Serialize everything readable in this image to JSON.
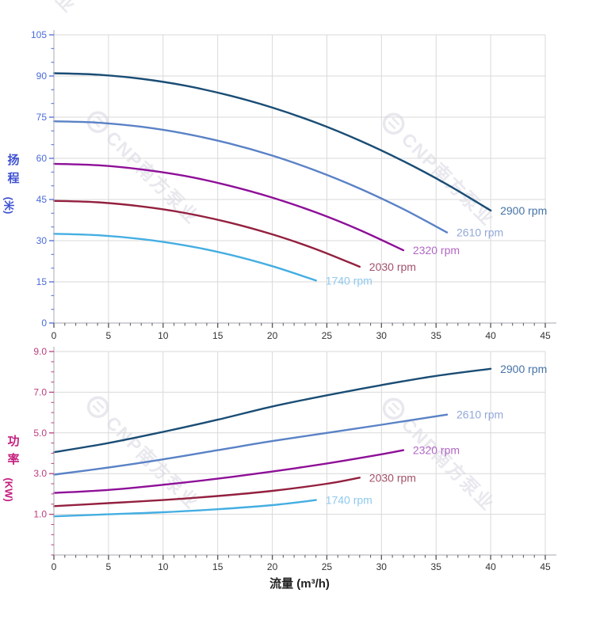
{
  "watermark": {
    "text": "CNP南方泵业",
    "logo": "cnp-logo",
    "color": "#e8e8ee"
  },
  "chart_data": [
    {
      "id": "head-chart",
      "type": "line",
      "title": "",
      "ylabel": "扬程",
      "ylabel_unit": "(米)",
      "xlabel": "",
      "xlim": [
        0,
        45
      ],
      "ylim": [
        0,
        105
      ],
      "grid": true,
      "legend_position": "curve-end-labels",
      "x_ticks": [
        0,
        5,
        10,
        15,
        20,
        25,
        30,
        35,
        40,
        45
      ],
      "x_minor_step": 1,
      "y_ticks": [
        0,
        15,
        30,
        45,
        60,
        75,
        90,
        105
      ],
      "y_tick_labels": [
        "0",
        "15",
        "30",
        "45",
        "60",
        "75",
        "90",
        "105"
      ],
      "y_minor_step": 5,
      "axis_text_color": "#4a6bd8",
      "series": [
        {
          "name": "2900 rpm",
          "color": "#1a4d75",
          "label_color": "#4573a6",
          "points": [
            [
              0,
              91
            ],
            [
              4,
              90.5
            ],
            [
              8,
              89
            ],
            [
              12,
              86.5
            ],
            [
              16,
              83
            ],
            [
              20,
              78.5
            ],
            [
              24,
              73
            ],
            [
              28,
              66.5
            ],
            [
              32,
              59
            ],
            [
              36,
              50.5
            ],
            [
              40,
              41
            ]
          ]
        },
        {
          "name": "2610 rpm",
          "color": "#5a82c6",
          "label_color": "#92a8d8",
          "points": [
            [
              0,
              73.5
            ],
            [
              4,
              73
            ],
            [
              8,
              71.5
            ],
            [
              12,
              69
            ],
            [
              16,
              65.5
            ],
            [
              20,
              61
            ],
            [
              24,
              55.5
            ],
            [
              28,
              49
            ],
            [
              32,
              41.5
            ],
            [
              36,
              33
            ]
          ]
        },
        {
          "name": "2320 rpm",
          "color": "#8e0f98",
          "label_color": "#b168c2",
          "points": [
            [
              0,
              58
            ],
            [
              4,
              57.5
            ],
            [
              8,
              56
            ],
            [
              12,
              53.6
            ],
            [
              16,
              50.1
            ],
            [
              20,
              45.7
            ],
            [
              24,
              40.3
            ],
            [
              28,
              33.9
            ],
            [
              32,
              26.5
            ]
          ]
        },
        {
          "name": "2030 rpm",
          "color": "#93203f",
          "label_color": "#a25168",
          "points": [
            [
              0,
              44.5
            ],
            [
              4,
              44
            ],
            [
              8,
              42.5
            ],
            [
              12,
              40.1
            ],
            [
              16,
              36.7
            ],
            [
              20,
              32.3
            ],
            [
              24,
              26.9
            ],
            [
              28,
              20.5
            ]
          ]
        },
        {
          "name": "1740 rpm",
          "color": "#45aee2",
          "label_color": "#8fc9ee",
          "points": [
            [
              0,
              32.5
            ],
            [
              4,
              32
            ],
            [
              8,
              30.6
            ],
            [
              12,
              28.3
            ],
            [
              16,
              25
            ],
            [
              20,
              20.7
            ],
            [
              24,
              15.5
            ]
          ]
        }
      ]
    },
    {
      "id": "power-chart",
      "type": "line",
      "title": "",
      "ylabel": "功率",
      "ylabel_unit": "(KW)",
      "xlabel": "流量 (m³/h)",
      "xlim": [
        0,
        45
      ],
      "ylim": [
        -1,
        9
      ],
      "grid": true,
      "legend_position": "curve-end-labels",
      "x_ticks": [
        0,
        5,
        10,
        15,
        20,
        25,
        30,
        35,
        40,
        45
      ],
      "x_minor_step": 1,
      "y_ticks": [
        1,
        3,
        5,
        7,
        9
      ],
      "y_tick_labels": [
        "1.0",
        "3.0",
        "5.0",
        "7.0",
        "9.0"
      ],
      "y_minor_step": 0.5,
      "axis_text_color": "#bc3d80",
      "series": [
        {
          "name": "2900 rpm",
          "color": "#1a4d75",
          "label_color": "#4573a6",
          "points": [
            [
              0,
              4.05
            ],
            [
              5,
              4.5
            ],
            [
              10,
              5.05
            ],
            [
              15,
              5.65
            ],
            [
              20,
              6.3
            ],
            [
              25,
              6.85
            ],
            [
              30,
              7.35
            ],
            [
              35,
              7.8
            ],
            [
              40,
              8.15
            ]
          ]
        },
        {
          "name": "2610 rpm",
          "color": "#5a82c6",
          "label_color": "#92a8d8",
          "points": [
            [
              0,
              2.95
            ],
            [
              5,
              3.3
            ],
            [
              10,
              3.7
            ],
            [
              15,
              4.15
            ],
            [
              20,
              4.6
            ],
            [
              25,
              5.0
            ],
            [
              30,
              5.4
            ],
            [
              36,
              5.9
            ]
          ]
        },
        {
          "name": "2320 rpm",
          "color": "#8e0f98",
          "label_color": "#b168c2",
          "points": [
            [
              0,
              2.05
            ],
            [
              5,
              2.2
            ],
            [
              10,
              2.45
            ],
            [
              15,
              2.75
            ],
            [
              20,
              3.1
            ],
            [
              25,
              3.5
            ],
            [
              30,
              3.95
            ],
            [
              32,
              4.15
            ]
          ]
        },
        {
          "name": "2030 rpm",
          "color": "#93203f",
          "label_color": "#a25168",
          "points": [
            [
              0,
              1.4
            ],
            [
              5,
              1.55
            ],
            [
              10,
              1.7
            ],
            [
              15,
              1.9
            ],
            [
              20,
              2.15
            ],
            [
              25,
              2.5
            ],
            [
              28,
              2.8
            ]
          ]
        },
        {
          "name": "1740 rpm",
          "color": "#45aee2",
          "label_color": "#8fc9ee",
          "points": [
            [
              0,
              0.9
            ],
            [
              5,
              1.0
            ],
            [
              10,
              1.1
            ],
            [
              15,
              1.25
            ],
            [
              20,
              1.45
            ],
            [
              24,
              1.7
            ]
          ]
        }
      ]
    }
  ]
}
